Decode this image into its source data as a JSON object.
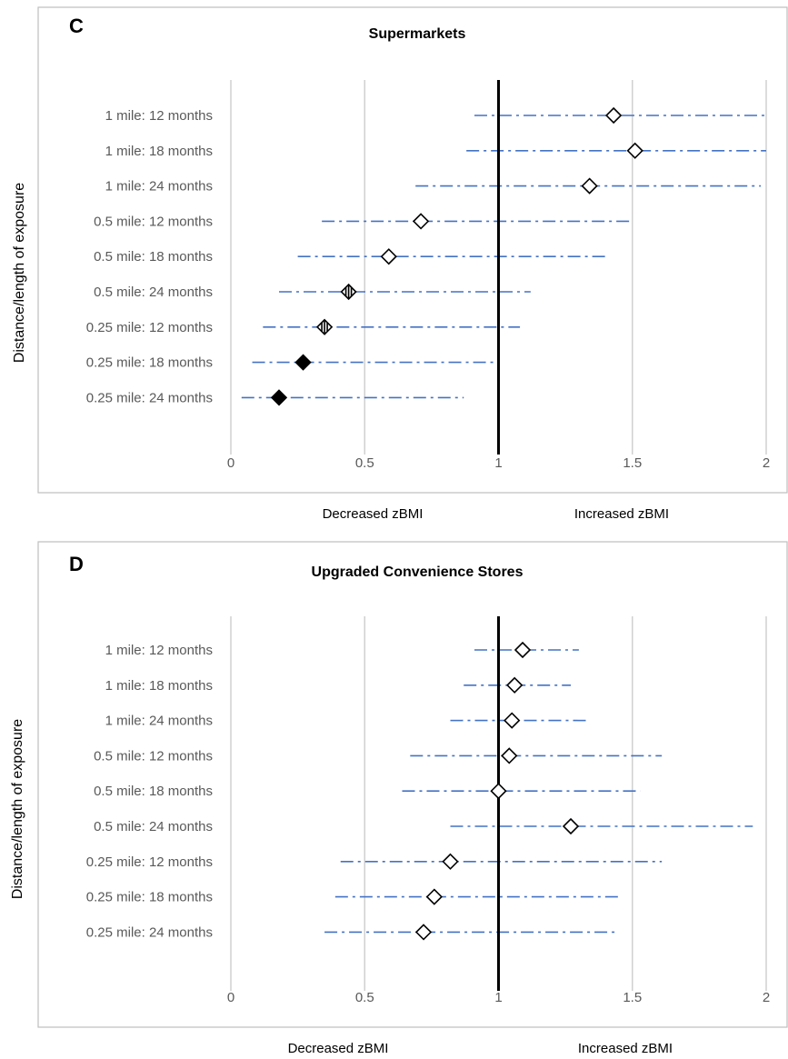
{
  "chart_data": [
    {
      "type": "forest",
      "panel_letter": "C",
      "title": "Supermarkets",
      "ylabel": "Distance/length of exposure",
      "direction_labels": {
        "left": "Decreased zBMI",
        "right": "Increased zBMI"
      },
      "xlim": [
        0,
        2
      ],
      "xticks": [
        "0",
        "0.5",
        "1",
        "1.5",
        "2"
      ],
      "xtick_values": [
        0,
        0.5,
        1,
        1.5,
        2
      ],
      "reference_line": 1,
      "categories": [
        "1 mile: 12 months",
        "1 mile: 18 months",
        "1 mile: 24 months",
        "0.5 mile: 12 months",
        "0.5 mile: 18 months",
        "0.5 mile: 24 months",
        "0.25 mile: 12 months",
        "0.25 mile: 18 months",
        "0.25 mile: 24 months"
      ],
      "estimates": [
        1.43,
        1.51,
        1.34,
        0.71,
        0.59,
        0.44,
        0.35,
        0.27,
        0.18
      ],
      "ci_lower": [
        0.91,
        0.88,
        0.69,
        0.34,
        0.25,
        0.18,
        0.12,
        0.08,
        0.04
      ],
      "ci_upper": [
        2.0,
        2.0,
        1.98,
        1.5,
        1.4,
        1.12,
        1.08,
        0.99,
        0.87
      ],
      "marker_style": [
        "open",
        "open",
        "open",
        "open",
        "open",
        "striped",
        "striped",
        "filled",
        "filled"
      ],
      "colors": {
        "ci_line": "#4472c4",
        "reference": "#000000",
        "grid": "#d0d0d0"
      }
    },
    {
      "type": "forest",
      "panel_letter": "D",
      "title": "Upgraded Convenience Stores",
      "ylabel": "Distance/length of exposure",
      "direction_labels": {
        "left": "Decreased zBMI",
        "right": "Increased zBMI"
      },
      "xlim": [
        0,
        2
      ],
      "xticks": [
        "0",
        "0.5",
        "1",
        "1.5",
        "2"
      ],
      "xtick_values": [
        0,
        0.5,
        1,
        1.5,
        2
      ],
      "reference_line": 1,
      "categories": [
        "1 mile: 12 months",
        "1 mile: 18 months",
        "1 mile: 24 months",
        "0.5 mile: 12 months",
        "0.5 mile: 18 months",
        "0.5 mile: 24 months",
        "0.25 mile: 12 months",
        "0.25 mile: 18 months",
        "0.25 mile: 24 months"
      ],
      "estimates": [
        1.09,
        1.06,
        1.05,
        1.04,
        1.0,
        1.27,
        0.82,
        0.76,
        0.72
      ],
      "ci_lower": [
        0.91,
        0.87,
        0.82,
        0.67,
        0.64,
        0.82,
        0.41,
        0.39,
        0.35
      ],
      "ci_upper": [
        1.3,
        1.27,
        1.34,
        1.61,
        1.53,
        1.95,
        1.61,
        1.45,
        1.44
      ],
      "marker_style": [
        "open",
        "open",
        "open",
        "open",
        "open",
        "open",
        "open",
        "open",
        "open"
      ],
      "colors": {
        "ci_line": "#4472c4",
        "reference": "#000000",
        "grid": "#d0d0d0"
      }
    }
  ]
}
